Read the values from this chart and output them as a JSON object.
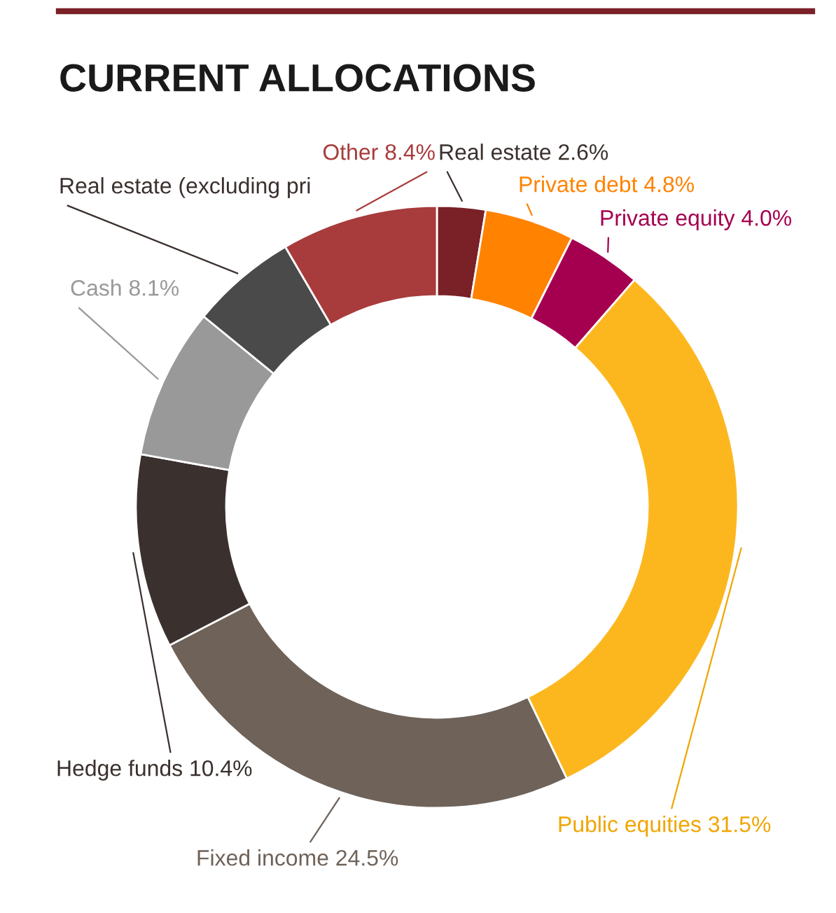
{
  "chart_data": {
    "type": "donut",
    "title": "CURRENT ALLOCATIONS",
    "categories": [
      "Real estate",
      "Private debt",
      "Private equity",
      "Public equities",
      "Fixed income",
      "Hedge funds",
      "Cash",
      "Real estate (excluding pri",
      "Other"
    ],
    "values": [
      2.6,
      4.8,
      4.0,
      31.5,
      24.5,
      10.4,
      8.1,
      5.7,
      8.4
    ],
    "value_labels": [
      "2.6%",
      "4.8%",
      "4.0%",
      "31.5%",
      "24.5%",
      "10.4%",
      "8.1%",
      null,
      "8.4%"
    ],
    "colors": [
      "#7a2027",
      "#ff8200",
      "#a50050",
      "#fdb71e",
      "#6e6259",
      "#3a302d",
      "#999999",
      "#4a4a4a",
      "#a83b3b"
    ],
    "legend": false
  }
}
